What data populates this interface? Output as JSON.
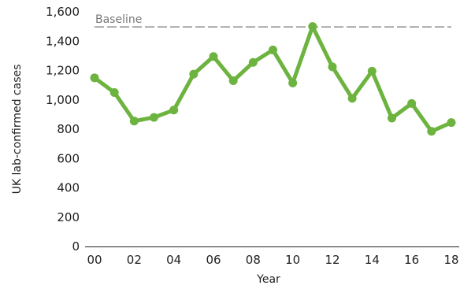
{
  "chart_data": {
    "type": "line",
    "xlabel": "Year",
    "ylabel": "UK lab-confirmed cases",
    "ylim": [
      0,
      1600
    ],
    "y_ticks": [
      0,
      200,
      400,
      600,
      800,
      1000,
      1200,
      1400,
      1600
    ],
    "y_tick_labels": [
      "0",
      "200",
      "400",
      "600",
      "800",
      "1,000",
      "1,200",
      "1,400",
      "1,600"
    ],
    "x_ticks": [
      2000,
      2002,
      2004,
      2006,
      2008,
      2010,
      2012,
      2014,
      2016,
      2018
    ],
    "x_tick_labels": [
      "00",
      "02",
      "04",
      "06",
      "08",
      "10",
      "12",
      "14",
      "16",
      "18"
    ],
    "xlim": [
      2000,
      2018
    ],
    "reference_line": {
      "label": "Baseline",
      "value": 1500
    },
    "series": [
      {
        "color": "#6db33f",
        "x": [
          2000,
          2001,
          2002,
          2003,
          2004,
          2005,
          2006,
          2007,
          2008,
          2009,
          2010,
          2011,
          2012,
          2013,
          2014,
          2015,
          2016,
          2017,
          2018
        ],
        "values": [
          1150,
          1050,
          855,
          880,
          930,
          1175,
          1295,
          1130,
          1255,
          1340,
          1115,
          1500,
          1225,
          1010,
          1195,
          875,
          975,
          785,
          845
        ]
      }
    ],
    "grid": false,
    "legend": "none"
  }
}
